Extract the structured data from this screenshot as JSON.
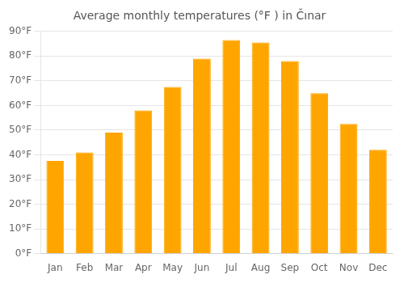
{
  "chart_data": {
    "type": "bar",
    "title": "Average monthly temperatures (°F ) in Čınar",
    "categories": [
      "Jan",
      "Feb",
      "Mar",
      "Apr",
      "May",
      "Jun",
      "Jul",
      "Aug",
      "Sep",
      "Oct",
      "Nov",
      "Dec"
    ],
    "values": [
      37.5,
      41.0,
      49.0,
      58.0,
      67.5,
      79.0,
      86.5,
      85.5,
      78.0,
      65.0,
      52.5,
      42.0
    ],
    "color": "#FFA500",
    "ylim": [
      0,
      90
    ],
    "yticks": [
      {
        "value": 0,
        "label": "0°F"
      },
      {
        "value": 10,
        "label": "10°F"
      },
      {
        "value": 20,
        "label": "20°F"
      },
      {
        "value": 30,
        "label": "30°F"
      },
      {
        "value": 40,
        "label": "40°F"
      },
      {
        "value": 50,
        "label": "50°F"
      },
      {
        "value": 60,
        "label": "60°F"
      },
      {
        "value": 70,
        "label": "70°F"
      },
      {
        "value": 80,
        "label": "80°F"
      },
      {
        "value": 90,
        "label": "90°F"
      }
    ],
    "grid": true
  }
}
